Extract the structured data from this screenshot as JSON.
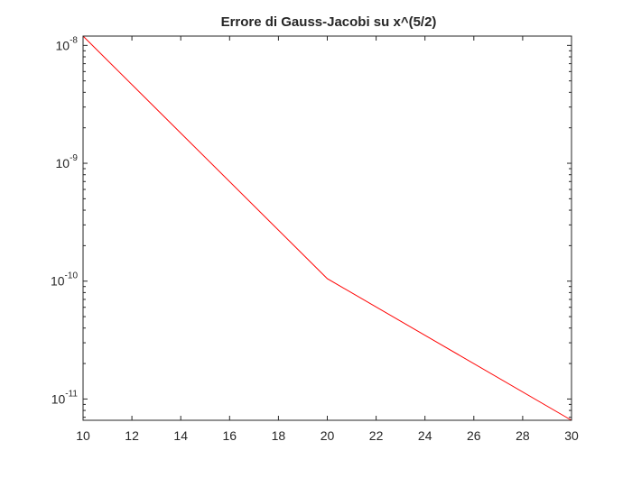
{
  "window": {
    "background": "#ffffff"
  },
  "chart_data": {
    "type": "line",
    "title": "Errore di Gauss-Jacobi su x^(5/2)",
    "xlabel": "",
    "ylabel": "",
    "x": [
      10,
      20,
      30
    ],
    "series": [
      {
        "values": [
          1.2e-08,
          1.05e-10,
          6.6e-12
        ],
        "color": "#ff0000"
      }
    ],
    "xlim": [
      10,
      30
    ],
    "ylim": [
      6.6e-12,
      1.2e-08
    ],
    "yscale": "log",
    "xticks": [
      10,
      12,
      14,
      16,
      18,
      20,
      22,
      24,
      26,
      28,
      30
    ],
    "xtick_labels": [
      "10",
      "12",
      "14",
      "16",
      "18",
      "20",
      "22",
      "24",
      "26",
      "28",
      "30"
    ],
    "yticks": [
      1e-11,
      1e-10,
      1e-09,
      1e-08
    ],
    "ytick_labels": [
      {
        "base": "10",
        "exp": "-11"
      },
      {
        "base": "10",
        "exp": "-10"
      },
      {
        "base": "10",
        "exp": "-9"
      },
      {
        "base": "10",
        "exp": "-8"
      }
    ],
    "grid": false,
    "box": true,
    "axis_color": "#262626"
  }
}
